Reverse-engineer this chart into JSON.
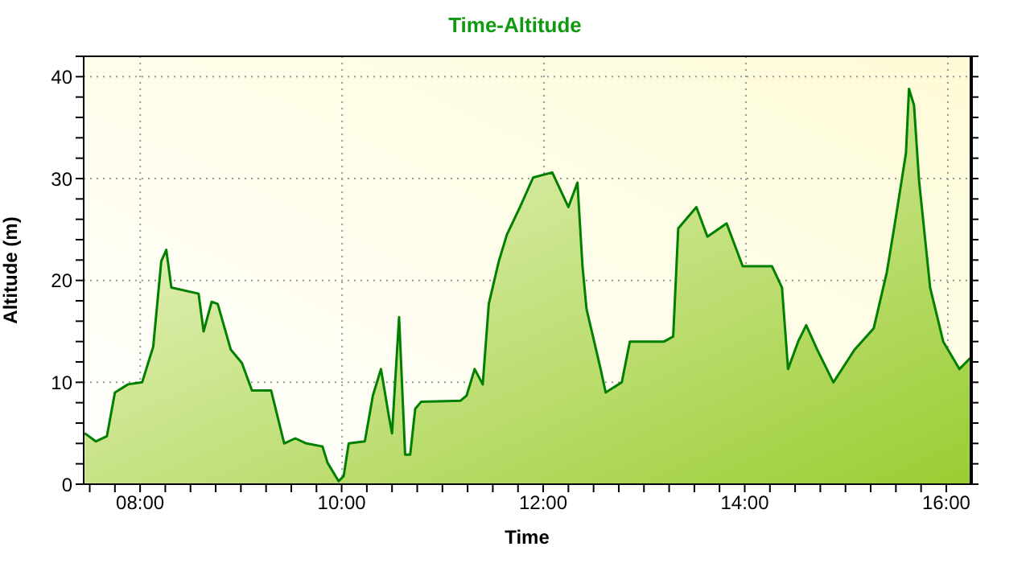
{
  "chart_data": {
    "type": "area",
    "title": "Time-Altitude",
    "xlabel": "Time",
    "ylabel": "Altitude (m)",
    "x": [
      7.45,
      7.56,
      7.67,
      7.75,
      7.88,
      8.02,
      8.13,
      8.21,
      8.26,
      8.31,
      8.58,
      8.63,
      8.71,
      8.77,
      8.9,
      9.01,
      9.11,
      9.3,
      9.43,
      9.54,
      9.65,
      9.81,
      9.86,
      9.97,
      10.02,
      10.07,
      10.23,
      10.31,
      10.39,
      10.47,
      10.5,
      10.57,
      10.63,
      10.68,
      10.73,
      10.79,
      11.18,
      11.24,
      11.32,
      11.4,
      11.46,
      11.56,
      11.64,
      11.77,
      11.9,
      12.09,
      12.25,
      12.34,
      12.39,
      12.43,
      12.57,
      12.62,
      12.78,
      12.86,
      13.2,
      13.29,
      13.34,
      13.52,
      13.63,
      13.82,
      13.98,
      14.27,
      14.37,
      14.43,
      14.53,
      14.61,
      14.72,
      14.88,
      15.09,
      15.28,
      15.41,
      15.49,
      15.6,
      15.63,
      15.68,
      15.73,
      15.84,
      15.97,
      16.13,
      16.24
    ],
    "series": [
      {
        "color": "#007f00",
        "values": [
          5,
          4.2,
          4.7,
          9,
          9.8,
          10,
          13.5,
          21.9,
          23,
          19.3,
          18.7,
          15,
          17.9,
          17.7,
          13.2,
          11.9,
          9.2,
          9.2,
          4,
          4.5,
          4,
          3.7,
          2.1,
          0.3,
          0.8,
          4,
          4.2,
          8.7,
          11.3,
          6.6,
          5,
          16.4,
          2.9,
          2.9,
          7.4,
          8.1,
          8.2,
          8.7,
          11.3,
          9.8,
          17.7,
          21.9,
          24.5,
          27.2,
          30.1,
          30.6,
          27.2,
          29.6,
          21.4,
          17.2,
          11.3,
          9,
          10,
          14,
          14,
          14.5,
          25.1,
          27.2,
          24.3,
          25.6,
          21.4,
          21.4,
          19.3,
          11.3,
          14,
          15.6,
          13.2,
          10,
          13.2,
          15.3,
          20.8,
          25.6,
          32.5,
          38.8,
          37.2,
          29.8,
          19.3,
          14,
          11.3,
          12.4
        ]
      }
    ],
    "xlim": [
      7.44,
      16.24
    ],
    "xticks": [
      {
        "value": 7.5,
        "label": null
      },
      {
        "value": 7.75,
        "label": null
      },
      {
        "value": 8,
        "label": "08:00"
      },
      {
        "value": 8.25,
        "label": null
      },
      {
        "value": 8.5,
        "label": null
      },
      {
        "value": 8.75,
        "label": null
      },
      {
        "value": 9,
        "label": null
      },
      {
        "value": 9.25,
        "label": null
      },
      {
        "value": 9.5,
        "label": null
      },
      {
        "value": 9.75,
        "label": null
      },
      {
        "value": 10,
        "label": "10:00"
      },
      {
        "value": 10.25,
        "label": null
      },
      {
        "value": 10.5,
        "label": null
      },
      {
        "value": 10.75,
        "label": null
      },
      {
        "value": 11,
        "label": null
      },
      {
        "value": 11.25,
        "label": null
      },
      {
        "value": 11.5,
        "label": null
      },
      {
        "value": 11.75,
        "label": null
      },
      {
        "value": 12,
        "label": "12:00"
      },
      {
        "value": 12.25,
        "label": null
      },
      {
        "value": 12.5,
        "label": null
      },
      {
        "value": 12.75,
        "label": null
      },
      {
        "value": 13,
        "label": null
      },
      {
        "value": 13.25,
        "label": null
      },
      {
        "value": 13.5,
        "label": null
      },
      {
        "value": 13.75,
        "label": null
      },
      {
        "value": 14,
        "label": "14:00"
      },
      {
        "value": 14.25,
        "label": null
      },
      {
        "value": 14.5,
        "label": null
      },
      {
        "value": 14.75,
        "label": null
      },
      {
        "value": 15,
        "label": null
      },
      {
        "value": 15.25,
        "label": null
      },
      {
        "value": 15.5,
        "label": null
      },
      {
        "value": 15.75,
        "label": null
      },
      {
        "value": 16,
        "label": "16:00"
      }
    ],
    "ylim": [
      0,
      42
    ],
    "yticks": [
      0,
      {
        "value": 2,
        "label": null
      },
      {
        "value": 4,
        "label": null
      },
      {
        "value": 6,
        "label": null
      },
      {
        "value": 8,
        "label": null
      },
      10,
      {
        "value": 12,
        "label": null
      },
      {
        "value": 14,
        "label": null
      },
      {
        "value": 16,
        "label": null
      },
      {
        "value": 18,
        "label": null
      },
      20,
      {
        "value": 22,
        "label": null
      },
      {
        "value": 24,
        "label": null
      },
      {
        "value": 26,
        "label": null
      },
      {
        "value": 28,
        "label": null
      },
      30,
      {
        "value": 32,
        "label": null
      },
      {
        "value": 34,
        "label": null
      },
      {
        "value": 36,
        "label": null
      },
      {
        "value": 38,
        "label": null
      },
      40,
      {
        "value": 42,
        "label": null
      }
    ],
    "grid": true
  }
}
